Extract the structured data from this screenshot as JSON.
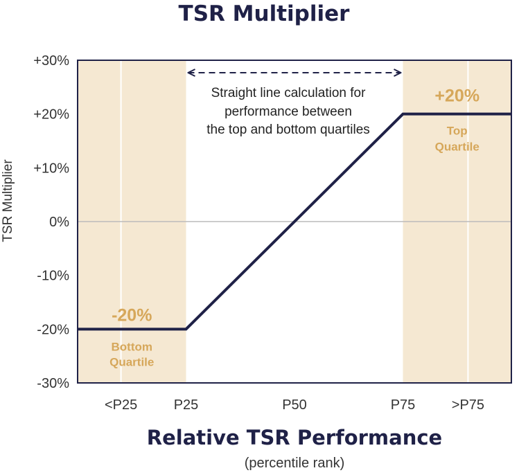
{
  "chart_data": {
    "type": "line",
    "title": "TSR Multiplier",
    "xlabel": "Relative TSR Performance",
    "xlabel_sub": "(percentile rank)",
    "ylabel": "TSR Multiplier",
    "categories": [
      "<P25",
      "P25",
      "P50",
      "P75",
      ">P75"
    ],
    "x_ticks": [
      10,
      25,
      50,
      75,
      90
    ],
    "y_ticks": [
      "+30%",
      "+20%",
      "+10%",
      "0%",
      "-10%",
      "-20%",
      "-30%"
    ],
    "y_tick_values": [
      30,
      20,
      10,
      0,
      -10,
      -20,
      -30
    ],
    "ylim": [
      -30,
      30
    ],
    "series": [
      {
        "x": [
          0,
          25,
          75,
          100
        ],
        "y": [
          -20,
          -20,
          20,
          20
        ]
      }
    ],
    "shaded_regions": [
      {
        "from": 0,
        "to": 25,
        "label_line1": "Bottom",
        "label_line2": "Quartile",
        "value_label": "-20%"
      },
      {
        "from": 75,
        "to": 100,
        "label_line1": "Top",
        "label_line2": "Quartile",
        "value_label": "+20%"
      }
    ],
    "annotation_lines": [
      "Straight line calculation for",
      "performance between",
      "the top and bottom quartiles"
    ],
    "zero_line": true,
    "colors": {
      "line": "#1f2147",
      "shade": "#f5e8d2",
      "accent": "#d6a75a",
      "axis": "#1f2147",
      "zero": "#bbbbbb"
    }
  }
}
